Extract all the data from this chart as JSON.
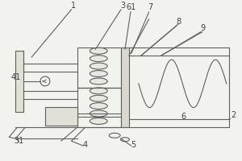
{
  "bg_color": "#f2f2ee",
  "lc": "#606060",
  "lw": 0.8,
  "fs": 7.0
}
